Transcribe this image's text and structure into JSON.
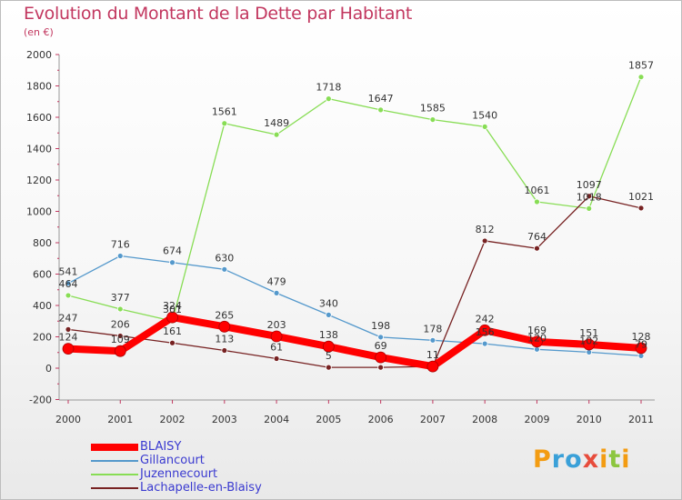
{
  "title": "Evolution du Montant de la Dette par Habitant",
  "subtitle": "(en €)",
  "logo": {
    "text": "Proxiti",
    "colors": [
      "#f39c12",
      "#3aa0d8",
      "#e74c3c",
      "#8cc63f"
    ]
  },
  "chart_data": {
    "type": "line",
    "title": "Evolution du Montant de la Dette par Habitant",
    "ylabel": "(en €)",
    "xlabel": "",
    "x": [
      "2000",
      "2001",
      "2002",
      "2003",
      "2004",
      "2005",
      "2006",
      "2007",
      "2008",
      "2009",
      "2010",
      "2011"
    ],
    "yticks": [
      "-200",
      "0",
      "200",
      "400",
      "600",
      "800",
      "1000",
      "1200",
      "1400",
      "1600",
      "1800",
      "2000"
    ],
    "ylim": [
      -200,
      2000
    ],
    "grid": false,
    "legend": "bottom-left",
    "series": [
      {
        "name": "BLAISY",
        "color": "#ff0000",
        "values": [
          124,
          109,
          324,
          265,
          203,
          138,
          69,
          11,
          242,
          169,
          151,
          128
        ],
        "labels": [
          "124",
          "109",
          "324",
          "265",
          "203",
          "138",
          "69",
          "11",
          "242",
          "169",
          "151",
          "128"
        ]
      },
      {
        "name": "Gillancourt",
        "color": "#5599cc",
        "values": [
          541,
          716,
          674,
          630,
          479,
          340,
          198,
          178,
          156,
          120,
          102,
          79
        ],
        "labels": [
          "541",
          "716",
          "674",
          "630",
          "479",
          "340",
          "198",
          "178",
          "156",
          "120",
          "102",
          "79"
        ]
      },
      {
        "name": "Juzennecourt",
        "color": "#88dd55",
        "values": [
          464,
          377,
          301,
          1561,
          1489,
          1718,
          1647,
          1585,
          1540,
          1061,
          1018,
          1857
        ],
        "labels": [
          "464",
          "377",
          "301",
          "1561",
          "1489",
          "1718",
          "1647",
          "1585",
          "1540",
          "1061",
          "1018",
          "1857"
        ]
      },
      {
        "name": "Lachapelle-en-Blaisy",
        "color": "#772222",
        "values": [
          247,
          206,
          161,
          113,
          61,
          5,
          5,
          11,
          812,
          764,
          1097,
          1021
        ],
        "labels": [
          "247",
          "206",
          "161",
          "113",
          "61",
          "5",
          "",
          "",
          "812",
          "764",
          "1097",
          "1021"
        ]
      }
    ]
  }
}
